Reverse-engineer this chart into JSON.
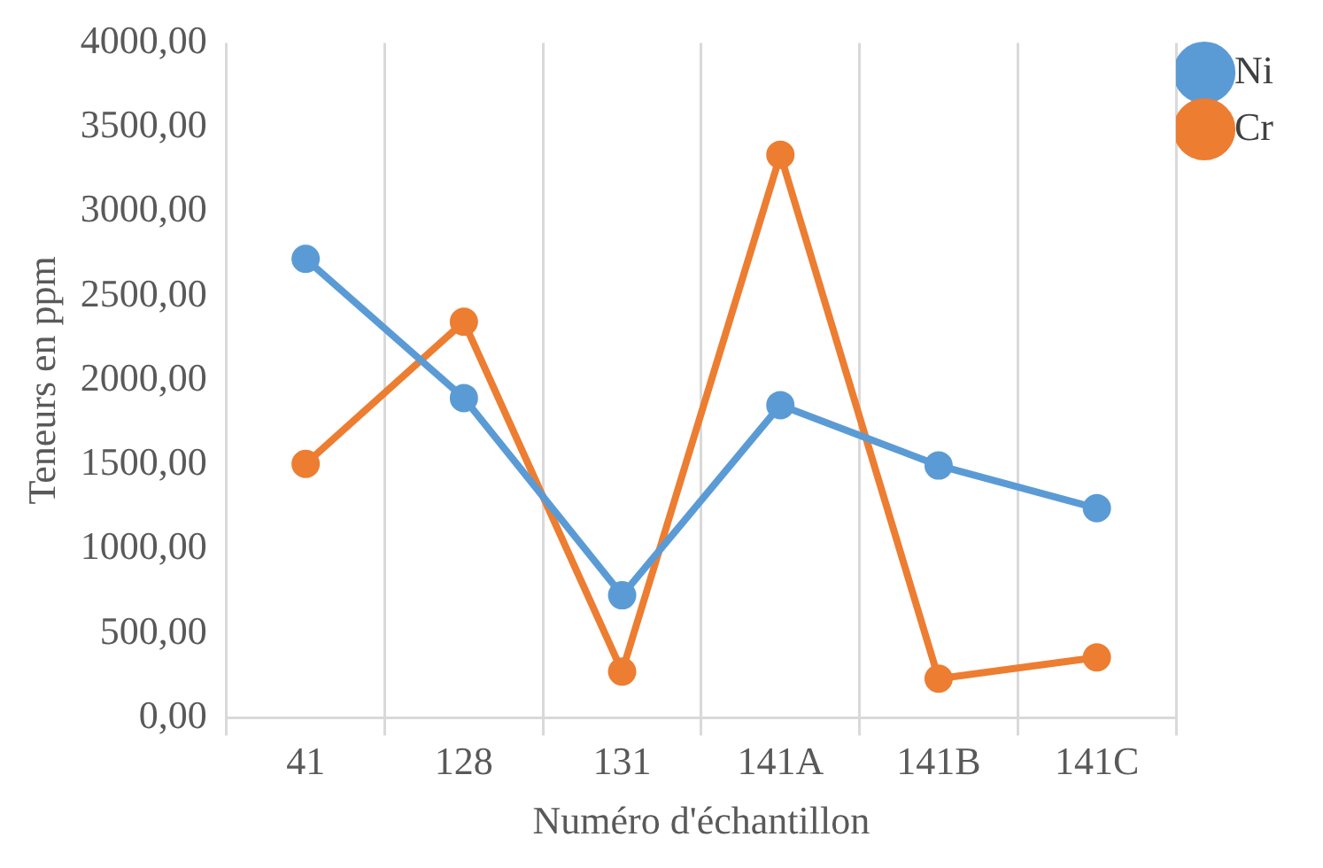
{
  "chart_data": {
    "type": "line",
    "xlabel": "Numéro d'échantillon",
    "ylabel": "Teneurs en ppm",
    "categories": [
      "41",
      "128",
      "131",
      "141A",
      "141B",
      "141C"
    ],
    "series": [
      {
        "name": "Ni",
        "color": "#5b9bd5",
        "values": [
          2720,
          1895,
          726,
          1853,
          1495,
          1242
        ]
      },
      {
        "name": "Cr",
        "color": "#ed7d31",
        "values": [
          1505,
          2347,
          274,
          3337,
          232,
          358
        ]
      }
    ],
    "ylim": [
      0,
      4000
    ],
    "yticks": [
      {
        "value": 0,
        "label": "0,00"
      },
      {
        "value": 500,
        "label": "500,00"
      },
      {
        "value": 1000,
        "label": "1000,00"
      },
      {
        "value": 1500,
        "label": "1500,00"
      },
      {
        "value": 2000,
        "label": "2000,00"
      },
      {
        "value": 2500,
        "label": "2500,00"
      },
      {
        "value": 3000,
        "label": "3000,00"
      },
      {
        "value": 3500,
        "label": "3500,00"
      },
      {
        "value": 4000,
        "label": "4000,00"
      }
    ],
    "grid": "x",
    "legend": "top right",
    "marker": "circle",
    "line_style": "solid"
  }
}
